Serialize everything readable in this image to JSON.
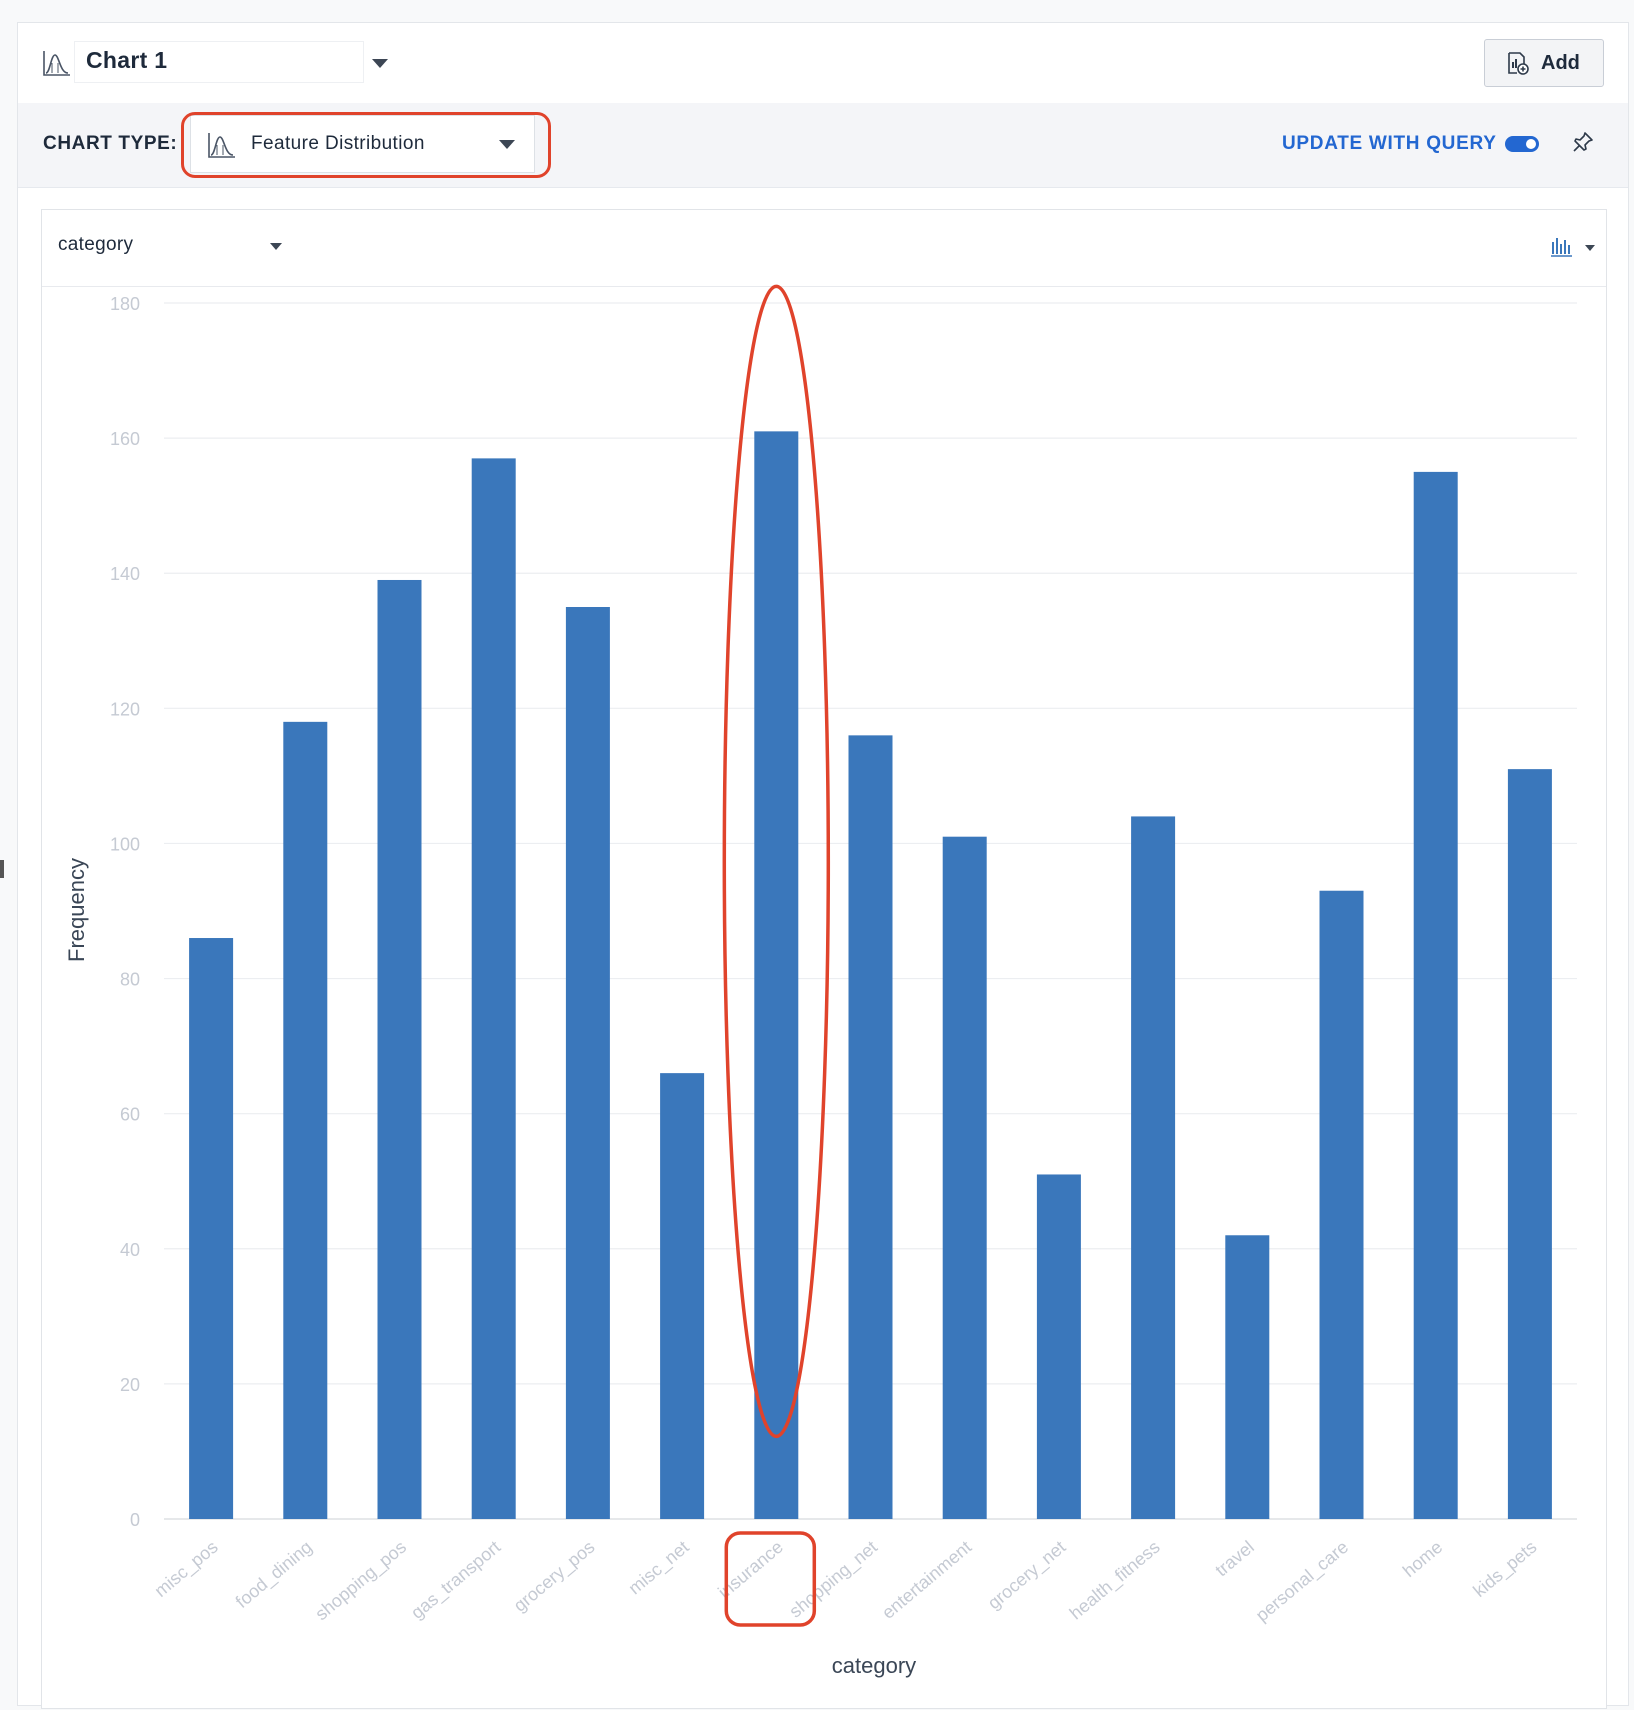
{
  "header": {
    "chart_name": "Chart 1",
    "add_label": "Add"
  },
  "typebar": {
    "chart_type_label": "CHART TYPE:",
    "chart_type_value": "Feature Distribution",
    "update_label": "UPDATE WITH QUERY",
    "update_enabled": true
  },
  "chart_panel": {
    "feature_select": "category"
  },
  "colors": {
    "bar": "#3a77bb",
    "accent": "#2367d1",
    "annotation": "#e0432b"
  },
  "icons": [
    "chart-type-icon",
    "caret-down-icon",
    "add-chart-icon",
    "pin-icon",
    "histogram-options-icon"
  ],
  "chart_data": {
    "type": "bar",
    "xlabel": "category",
    "ylabel": "Frequency",
    "ylim": [
      0,
      180
    ],
    "yticks": [
      0,
      20,
      40,
      60,
      80,
      100,
      120,
      140,
      160,
      180
    ],
    "categories": [
      "misc_pos",
      "food_dining",
      "shopping_pos",
      "gas_transport",
      "grocery_pos",
      "misc_net",
      "insurance",
      "shopping_net",
      "entertainment",
      "grocery_net",
      "health_fitness",
      "travel",
      "personal_care",
      "home",
      "kids_pets"
    ],
    "values": [
      86,
      118,
      139,
      157,
      135,
      66,
      161,
      116,
      101,
      51,
      104,
      42,
      93,
      155,
      111
    ],
    "grid": true,
    "highlighted_category": "insurance"
  }
}
